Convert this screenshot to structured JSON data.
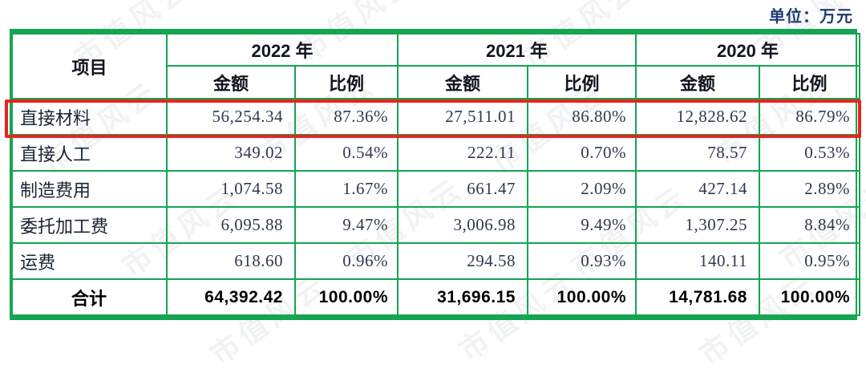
{
  "unit_label": "单位：万元",
  "watermark": {
    "text": "市值风云"
  },
  "colors": {
    "table_border_green": "#14a552",
    "highlight_red": "#e8251d",
    "unit_label_navy": "#1e3a6e"
  },
  "table": {
    "header": {
      "item": "项目",
      "years": [
        "2022 年",
        "2021 年",
        "2020 年"
      ],
      "amount": "金额",
      "ratio": "比例"
    },
    "rows": [
      {
        "label": "直接材料",
        "values": [
          "56,254.34",
          "87.36%",
          "27,511.01",
          "86.80%",
          "12,828.62",
          "86.79%"
        ],
        "highlight": true
      },
      {
        "label": "直接人工",
        "values": [
          "349.02",
          "0.54%",
          "222.11",
          "0.70%",
          "78.57",
          "0.53%"
        ],
        "highlight": false
      },
      {
        "label": "制造费用",
        "values": [
          "1,074.58",
          "1.67%",
          "661.47",
          "2.09%",
          "427.14",
          "2.89%"
        ],
        "highlight": false
      },
      {
        "label": "委托加工费",
        "values": [
          "6,095.88",
          "9.47%",
          "3,006.98",
          "9.49%",
          "1,307.25",
          "8.84%"
        ],
        "highlight": false
      },
      {
        "label": "运费",
        "values": [
          "618.60",
          "0.96%",
          "294.58",
          "0.93%",
          "140.11",
          "0.95%"
        ],
        "highlight": false
      }
    ],
    "total": {
      "label": "合计",
      "values": [
        "64,392.42",
        "100.00%",
        "31,696.15",
        "100.00%",
        "14,781.68",
        "100.00%"
      ]
    }
  }
}
